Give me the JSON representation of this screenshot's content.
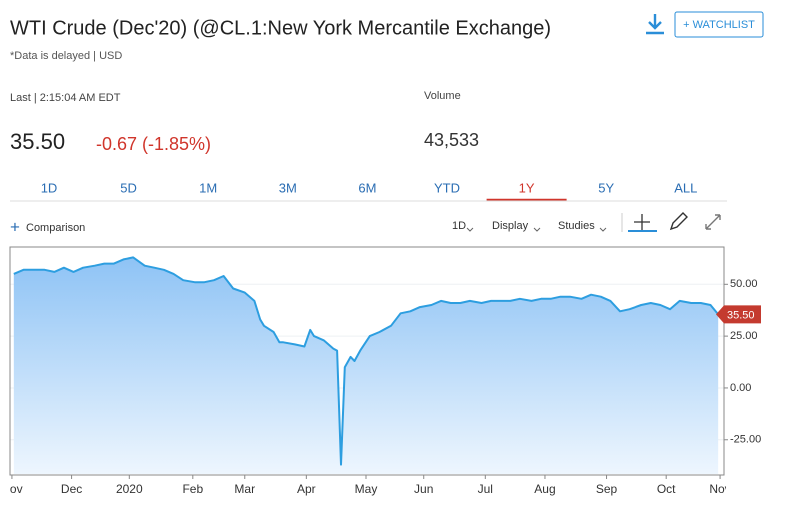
{
  "header": {
    "title": "WTI Crude (Dec'20) (@CL.1:New York Mercantile Exchange)",
    "subtitle": "*Data is delayed | USD",
    "watchlist": "+ WATCHLIST"
  },
  "quote": {
    "last_label": "Last | 2:15:04 AM EDT",
    "price": "35.50",
    "change": "-0.67 (-1.85%)",
    "volume_label": "Volume",
    "volume": "43,533"
  },
  "ranges": [
    "1D",
    "5D",
    "1M",
    "3M",
    "6M",
    "YTD",
    "1Y",
    "5Y",
    "ALL"
  ],
  "active_range": 6,
  "toolbar": {
    "comparison": "Comparison",
    "interval": "1D",
    "display": "Display",
    "studies": "Studies"
  },
  "chart_data": {
    "type": "area",
    "color": "#2d9ee0",
    "x": [
      1,
      6,
      11,
      17,
      22,
      27,
      32,
      37,
      43,
      48,
      53,
      58,
      63,
      69,
      74,
      79,
      84,
      89,
      95,
      100,
      105,
      110,
      115,
      121,
      126,
      129,
      131,
      136,
      139,
      141,
      147,
      152,
      155,
      157,
      162,
      167,
      169,
      171,
      173,
      176,
      178,
      181,
      186,
      191,
      197,
      202,
      207,
      212,
      218,
      223,
      228,
      233,
      238,
      244,
      249,
      254,
      259,
      264,
      270,
      275,
      280,
      285,
      290,
      296,
      301,
      306,
      311,
      316,
      321,
      327,
      332,
      337,
      342,
      347,
      353,
      358,
      363,
      367
    ],
    "values": [
      55,
      57,
      57,
      57,
      56,
      58,
      56,
      58,
      59,
      60,
      60,
      62,
      63,
      59,
      58,
      57,
      55,
      52,
      51,
      51,
      52,
      54,
      48,
      46,
      42,
      33,
      30,
      27,
      22,
      22,
      21,
      20,
      28,
      25,
      23,
      19,
      18,
      -37,
      10,
      15,
      13,
      18,
      25,
      27,
      30,
      36,
      37,
      39,
      40,
      42,
      41,
      41,
      42,
      41,
      42,
      42,
      42,
      43,
      42,
      43,
      43,
      44,
      44,
      43,
      45,
      44,
      42,
      37,
      38,
      40,
      41,
      40,
      38,
      42,
      41,
      41,
      40,
      35.5
    ],
    "xlim": [
      -1,
      369
    ],
    "xticks": [
      {
        "value": 0,
        "label": "Nov"
      },
      {
        "value": 31,
        "label": "Dec"
      },
      {
        "value": 61,
        "label": "2020"
      },
      {
        "value": 94,
        "label": "Feb"
      },
      {
        "value": 121,
        "label": "Mar"
      },
      {
        "value": 153,
        "label": "Apr"
      },
      {
        "value": 184,
        "label": "May"
      },
      {
        "value": 214,
        "label": "Jun"
      },
      {
        "value": 246,
        "label": "Jul"
      },
      {
        "value": 277,
        "label": "Aug"
      },
      {
        "value": 309,
        "label": "Sep"
      },
      {
        "value": 340,
        "label": "Oct"
      },
      {
        "value": 368,
        "label": "Nov"
      }
    ],
    "ylim": [
      -42,
      68
    ],
    "yticks": [
      {
        "value": -25,
        "label": "-25.00"
      },
      {
        "value": 0,
        "label": "0.00"
      },
      {
        "value": 25,
        "label": "25.00"
      },
      {
        "value": 50,
        "label": "50.00"
      }
    ],
    "grid": true
  }
}
